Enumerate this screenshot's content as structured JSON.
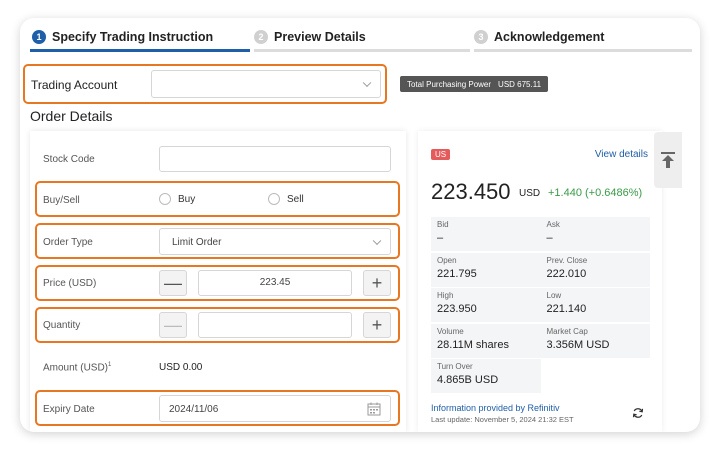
{
  "steps": [
    {
      "num": "1",
      "label": "Specify Trading Instruction"
    },
    {
      "num": "2",
      "label": "Preview Details"
    },
    {
      "num": "3",
      "label": "Acknowledgement"
    }
  ],
  "trading_account": {
    "label": "Trading Account",
    "value": ""
  },
  "purchasing_power": {
    "label": "Total Purchasing Power",
    "value": "USD 675.11"
  },
  "order_details": {
    "title": "Order Details",
    "stock_code": {
      "label": "Stock Code",
      "value": ""
    },
    "buy_sell": {
      "label": "Buy/Sell",
      "options": [
        "Buy",
        "Sell"
      ]
    },
    "order_type": {
      "label": "Order Type",
      "value": "Limit Order"
    },
    "price": {
      "label": "Price (USD)",
      "value": "223.45",
      "minus": "—",
      "plus": "+"
    },
    "quantity": {
      "label": "Quantity",
      "value": "",
      "minus": "—",
      "plus": "+"
    },
    "amount": {
      "label": "Amount (USD)",
      "footnote": "1",
      "value": "USD 0.00"
    },
    "expiry": {
      "label": "Expiry Date",
      "value": "2024/11/06"
    }
  },
  "quote": {
    "market": "US",
    "view_details": "View details",
    "price": "223.450",
    "currency": "USD",
    "change": "+1.440 (+0.6486%)",
    "rows": [
      [
        {
          "k": "Bid",
          "v": "–"
        },
        {
          "k": "Ask",
          "v": "–"
        }
      ],
      [
        {
          "k": "Open",
          "v": "221.795"
        },
        {
          "k": "Prev. Close",
          "v": "222.010"
        }
      ],
      [
        {
          "k": "High",
          "v": "223.950"
        },
        {
          "k": "Low",
          "v": "221.140"
        }
      ],
      [
        {
          "k": "Volume",
          "v": "28.11M shares"
        },
        {
          "k": "Market Cap",
          "v": "3.356M USD"
        }
      ],
      [
        {
          "k": "Turn Over",
          "v": "4.865B USD"
        },
        {
          "k": "",
          "v": ""
        }
      ]
    ],
    "provider": "Information provided by Refinitiv",
    "last_update": "Last update: November 5, 2024 21:32 EST"
  },
  "colors": {
    "accent": "#1f5ea8",
    "highlight": "#e87722",
    "positive": "#3a9a48",
    "badge": "#e55b5b"
  }
}
